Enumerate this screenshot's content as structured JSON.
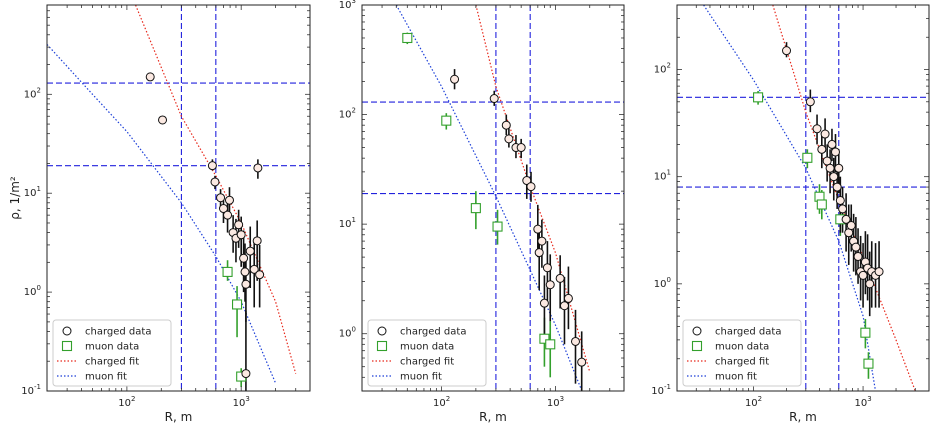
{
  "chart_data": [
    {
      "type": "scatter",
      "xscale": "log",
      "yscale": "log",
      "xlabel": "R, m",
      "ylabel": "ρ, 1/m²",
      "xlim": [
        20,
        4000
      ],
      "ylim": [
        0.1,
        800
      ],
      "legend_position": "bottom-left",
      "legend": [
        "charged data",
        "muon data",
        "charged fit",
        "muon fit"
      ],
      "vlines_x": [
        300,
        600
      ],
      "hlines_y": [
        130,
        19
      ],
      "charged_points": [
        {
          "x": 160,
          "y": 150,
          "yerr_low": 0,
          "yerr_high": 0
        },
        {
          "x": 205,
          "y": 55,
          "yerr_low": 0,
          "yerr_high": 0
        },
        {
          "x": 560,
          "y": 19,
          "yerr_low": 2,
          "yerr_high": 3
        },
        {
          "x": 590,
          "y": 13,
          "yerr_low": 2,
          "yerr_high": 2
        },
        {
          "x": 660,
          "y": 9,
          "yerr_low": 2,
          "yerr_high": 2
        },
        {
          "x": 700,
          "y": 7,
          "yerr_low": 2,
          "yerr_high": 2
        },
        {
          "x": 760,
          "y": 6,
          "yerr_low": 2,
          "yerr_high": 3
        },
        {
          "x": 790,
          "y": 8.5,
          "yerr_low": 2,
          "yerr_high": 3
        },
        {
          "x": 850,
          "y": 4,
          "yerr_low": 1.5,
          "yerr_high": 2
        },
        {
          "x": 900,
          "y": 3.5,
          "yerr_low": 1.5,
          "yerr_high": 2
        },
        {
          "x": 950,
          "y": 4.8,
          "yerr_low": 2,
          "yerr_high": 2
        },
        {
          "x": 1000,
          "y": 3.8,
          "yerr_low": 2,
          "yerr_high": 2
        },
        {
          "x": 1050,
          "y": 2.2,
          "yerr_low": 1.2,
          "yerr_high": 2
        },
        {
          "x": 1080,
          "y": 1.6,
          "yerr_low": 0.8,
          "yerr_high": 1.5
        },
        {
          "x": 1100,
          "y": 1.2,
          "yerr_low": 0.7,
          "yerr_high": 1.2
        },
        {
          "x": 1200,
          "y": 2.6,
          "yerr_low": 1.5,
          "yerr_high": 2
        },
        {
          "x": 1300,
          "y": 1.7,
          "yerr_low": 1,
          "yerr_high": 1.5
        },
        {
          "x": 1380,
          "y": 3.3,
          "yerr_low": 2,
          "yerr_high": 2
        },
        {
          "x": 1450,
          "y": 1.5,
          "yerr_low": 0.8,
          "yerr_high": 1.5
        },
        {
          "x": 1400,
          "y": 18,
          "yerr_low": 4,
          "yerr_high": 4
        },
        {
          "x": 1100,
          "y": 0.15,
          "yerr_low": 0.05,
          "yerr_high": 0.5
        }
      ],
      "muon_points": [
        {
          "x": 760,
          "y": 1.6,
          "yerr_low": 0.3,
          "yerr_high": 0.5
        },
        {
          "x": 920,
          "y": 0.75,
          "yerr_low": 0.4,
          "yerr_high": 0.4
        },
        {
          "x": 1000,
          "y": 0.14,
          "yerr_low": 0.03,
          "yerr_high": 0.03
        }
      ],
      "charged_fit": {
        "x": [
          110,
          300,
          600,
          1000,
          2000,
          3000
        ],
        "y": [
          1000,
          60,
          15,
          5,
          0.8,
          0.15
        ]
      },
      "muon_fit": {
        "x": [
          20,
          50,
          100,
          300,
          600,
          1000,
          2000
        ],
        "y": [
          320,
          100,
          42,
          8,
          2.3,
          0.8,
          0.12
        ]
      }
    },
    {
      "type": "scatter",
      "xscale": "log",
      "yscale": "log",
      "xlabel": "R, m",
      "ylabel": "",
      "xlim": [
        20,
        4000
      ],
      "ylim": [
        0.3,
        1000
      ],
      "legend_position": "bottom-left",
      "legend": [
        "charged data",
        "muon data",
        "charged fit",
        "muon fit"
      ],
      "vlines_x": [
        300,
        600
      ],
      "hlines_y": [
        130,
        19
      ],
      "charged_points": [
        {
          "x": 130,
          "y": 210,
          "yerr_low": 40,
          "yerr_high": 50
        },
        {
          "x": 290,
          "y": 140,
          "yerr_low": 20,
          "yerr_high": 25
        },
        {
          "x": 370,
          "y": 80,
          "yerr_low": 15,
          "yerr_high": 20
        },
        {
          "x": 390,
          "y": 60,
          "yerr_low": 10,
          "yerr_high": 15
        },
        {
          "x": 450,
          "y": 50,
          "yerr_low": 10,
          "yerr_high": 15
        },
        {
          "x": 500,
          "y": 50,
          "yerr_low": 10,
          "yerr_high": 10
        },
        {
          "x": 560,
          "y": 25,
          "yerr_low": 8,
          "yerr_high": 10
        },
        {
          "x": 610,
          "y": 22,
          "yerr_low": 6,
          "yerr_high": 8
        },
        {
          "x": 700,
          "y": 9,
          "yerr_low": 4,
          "yerr_high": 6
        },
        {
          "x": 720,
          "y": 5.5,
          "yerr_low": 3,
          "yerr_high": 4
        },
        {
          "x": 760,
          "y": 7,
          "yerr_low": 3,
          "yerr_high": 4
        },
        {
          "x": 850,
          "y": 4,
          "yerr_low": 2,
          "yerr_high": 3
        },
        {
          "x": 900,
          "y": 2.8,
          "yerr_low": 1.5,
          "yerr_high": 2.5
        },
        {
          "x": 1100,
          "y": 3.2,
          "yerr_low": 1.5,
          "yerr_high": 2
        },
        {
          "x": 1200,
          "y": 1.8,
          "yerr_low": 1,
          "yerr_high": 1.5
        },
        {
          "x": 800,
          "y": 1.9,
          "yerr_low": 1,
          "yerr_high": 1.5
        },
        {
          "x": 1300,
          "y": 2.1,
          "yerr_low": 1,
          "yerr_high": 2
        },
        {
          "x": 1500,
          "y": 0.85,
          "yerr_low": 0.5,
          "yerr_high": 0.8
        },
        {
          "x": 1700,
          "y": 0.55,
          "yerr_low": 0.3,
          "yerr_high": 0.5
        }
      ],
      "muon_points": [
        {
          "x": 50,
          "y": 500,
          "yerr_low": 60,
          "yerr_high": 60
        },
        {
          "x": 110,
          "y": 88,
          "yerr_low": 15,
          "yerr_high": 15
        },
        {
          "x": 200,
          "y": 14,
          "yerr_low": 5,
          "yerr_high": 6
        },
        {
          "x": 310,
          "y": 9.5,
          "yerr_low": 3,
          "yerr_high": 4
        },
        {
          "x": 800,
          "y": 0.9,
          "yerr_low": 0.4,
          "yerr_high": 0.5
        },
        {
          "x": 900,
          "y": 0.8,
          "yerr_low": 0.4,
          "yerr_high": 0.5
        }
      ],
      "charged_fit": {
        "x": [
          200,
          300,
          600,
          1000,
          2000
        ],
        "y": [
          1000,
          180,
          22,
          5.5,
          0.45
        ]
      },
      "muon_fit": {
        "x": [
          40,
          100,
          300,
          600,
          1000,
          2000
        ],
        "y": [
          1000,
          180,
          18,
          3.8,
          1.2,
          0.2
        ]
      }
    },
    {
      "type": "scatter",
      "xscale": "log",
      "yscale": "log",
      "xlabel": "R, m",
      "ylabel": "",
      "xlim": [
        20,
        4000
      ],
      "ylim": [
        0.1,
        400
      ],
      "legend_position": "bottom-left",
      "legend": [
        "charged data",
        "muon data",
        "charged fit",
        "muon fit"
      ],
      "vlines_x": [
        300,
        600
      ],
      "hlines_y": [
        55,
        8
      ],
      "charged_points": [
        {
          "x": 200,
          "y": 150,
          "yerr_low": 20,
          "yerr_high": 30
        },
        {
          "x": 330,
          "y": 50,
          "yerr_low": 10,
          "yerr_high": 15
        },
        {
          "x": 380,
          "y": 28,
          "yerr_low": 8,
          "yerr_high": 10
        },
        {
          "x": 420,
          "y": 18,
          "yerr_low": 6,
          "yerr_high": 8
        },
        {
          "x": 450,
          "y": 25,
          "yerr_low": 8,
          "yerr_high": 10
        },
        {
          "x": 470,
          "y": 14,
          "yerr_low": 5,
          "yerr_high": 6
        },
        {
          "x": 500,
          "y": 12,
          "yerr_low": 5,
          "yerr_high": 6
        },
        {
          "x": 520,
          "y": 20,
          "yerr_low": 6,
          "yerr_high": 8
        },
        {
          "x": 540,
          "y": 10,
          "yerr_low": 4,
          "yerr_high": 5
        },
        {
          "x": 560,
          "y": 17,
          "yerr_low": 6,
          "yerr_high": 8
        },
        {
          "x": 580,
          "y": 8,
          "yerr_low": 3,
          "yerr_high": 4
        },
        {
          "x": 600,
          "y": 12,
          "yerr_low": 5,
          "yerr_high": 6
        },
        {
          "x": 620,
          "y": 6,
          "yerr_low": 3,
          "yerr_high": 4
        },
        {
          "x": 650,
          "y": 5,
          "yerr_low": 2,
          "yerr_high": 3
        },
        {
          "x": 700,
          "y": 4,
          "yerr_low": 2,
          "yerr_high": 3
        },
        {
          "x": 740,
          "y": 3,
          "yerr_low": 1.5,
          "yerr_high": 2.5
        },
        {
          "x": 780,
          "y": 3.5,
          "yerr_low": 1.5,
          "yerr_high": 2
        },
        {
          "x": 820,
          "y": 2.5,
          "yerr_low": 1.2,
          "yerr_high": 2
        },
        {
          "x": 860,
          "y": 2.2,
          "yerr_low": 1,
          "yerr_high": 2
        },
        {
          "x": 900,
          "y": 1.8,
          "yerr_low": 0.8,
          "yerr_high": 1.5
        },
        {
          "x": 950,
          "y": 1.3,
          "yerr_low": 0.6,
          "yerr_high": 1.5
        },
        {
          "x": 1000,
          "y": 1.2,
          "yerr_low": 0.6,
          "yerr_high": 1.2
        },
        {
          "x": 1050,
          "y": 1.6,
          "yerr_low": 0.8,
          "yerr_high": 1.5
        },
        {
          "x": 1100,
          "y": 1.4,
          "yerr_low": 0.7,
          "yerr_high": 1.5
        },
        {
          "x": 1150,
          "y": 1.0,
          "yerr_low": 0.5,
          "yerr_high": 1
        },
        {
          "x": 1200,
          "y": 1.3,
          "yerr_low": 0.7,
          "yerr_high": 1.2
        },
        {
          "x": 1300,
          "y": 1.2,
          "yerr_low": 0.6,
          "yerr_high": 1.2
        },
        {
          "x": 1400,
          "y": 1.3,
          "yerr_low": 0.7,
          "yerr_high": 1.2
        }
      ],
      "muon_points": [
        {
          "x": 110,
          "y": 55,
          "yerr_low": 8,
          "yerr_high": 8
        },
        {
          "x": 310,
          "y": 15,
          "yerr_low": 3,
          "yerr_high": 3
        },
        {
          "x": 400,
          "y": 6.5,
          "yerr_low": 2,
          "yerr_high": 2
        },
        {
          "x": 420,
          "y": 5.5,
          "yerr_low": 1.5,
          "yerr_high": 2
        },
        {
          "x": 620,
          "y": 4,
          "yerr_low": 1.2,
          "yerr_high": 1.5
        },
        {
          "x": 1050,
          "y": 0.35,
          "yerr_low": 0.1,
          "yerr_high": 0.12
        },
        {
          "x": 1120,
          "y": 0.18,
          "yerr_low": 0.05,
          "yerr_high": 0.05
        }
      ],
      "charged_fit": {
        "x": [
          150,
          300,
          600,
          1000,
          2000,
          3000
        ],
        "y": [
          400,
          40,
          6,
          1.8,
          0.3,
          0.1
        ]
      },
      "muon_fit": {
        "x": [
          35,
          100,
          300,
          600,
          1000,
          1300
        ],
        "y": [
          400,
          80,
          12,
          2.5,
          0.5,
          0.1
        ]
      }
    }
  ]
}
